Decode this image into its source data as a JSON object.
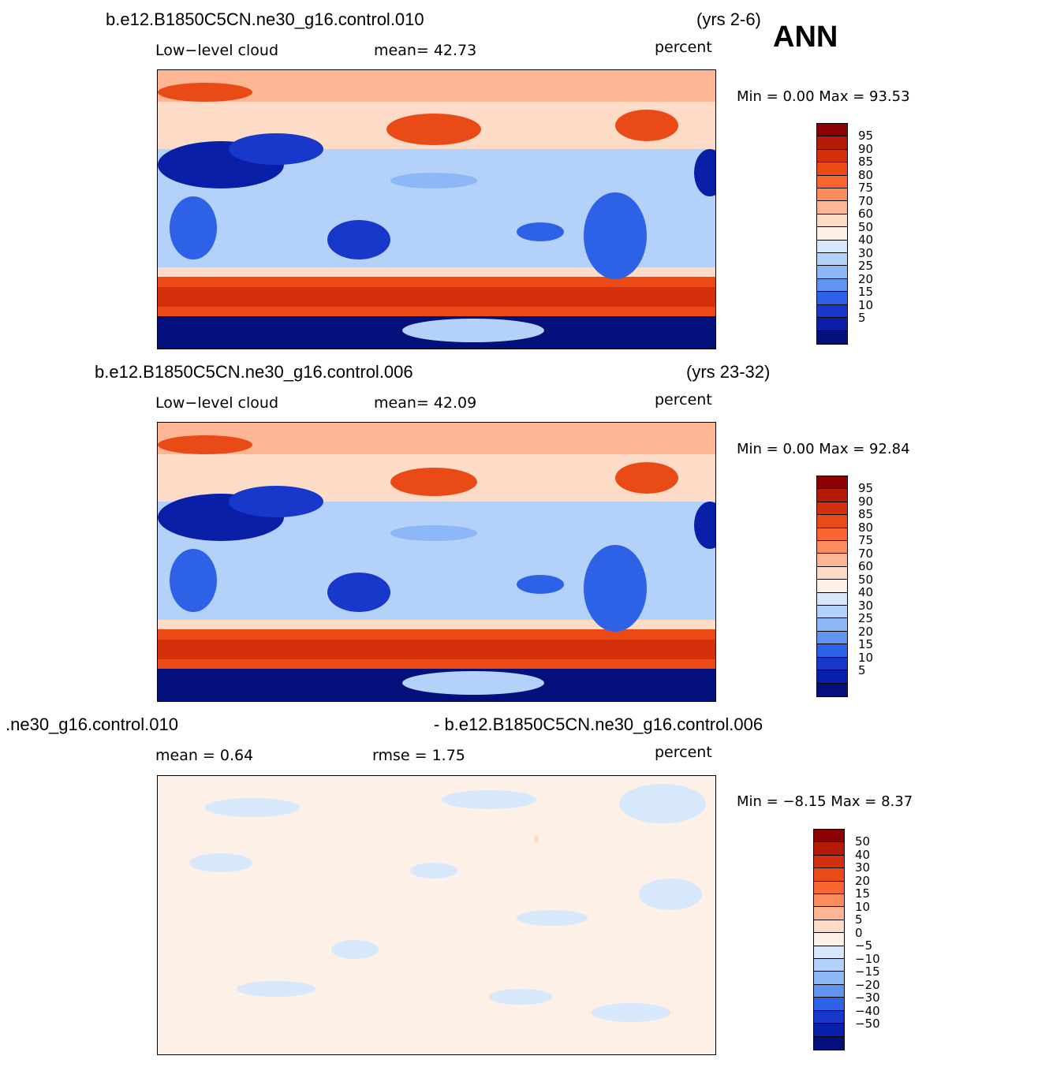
{
  "season": "ANN",
  "panels": [
    {
      "case_title": "b.e12.B1850C5CN.ne30_g16.control.010",
      "years": "(yrs 2-6)",
      "left_label": "Low−level  cloud",
      "mid_label": "mean=   42.73",
      "units": "percent",
      "minmax": "Min  =      0.00  Max  =     93.53",
      "map_kind": "field"
    },
    {
      "case_title": "b.e12.B1850C5CN.ne30_g16.control.006",
      "years": "(yrs 23-32)",
      "left_label": "Low−level  cloud",
      "mid_label": "mean=   42.09",
      "units": "percent",
      "minmax": "Min  =      0.00  Max  =     92.84",
      "map_kind": "field"
    },
    {
      "case_title": ".ne30_g16.control.010",
      "years": "- b.e12.B1850C5CN.ne30_g16.control.006",
      "left_label": "mean  =      0.64",
      "mid_label": "rmse  =      1.75",
      "units": "percent",
      "minmax": "Min  =  −8.15  Max  =       8.37",
      "map_kind": "diff"
    }
  ],
  "colorbars": {
    "field": {
      "labels": [
        "95",
        "90",
        "85",
        "80",
        "75",
        "70",
        "60",
        "50",
        "40",
        "30",
        "25",
        "20",
        "15",
        "10",
        "5"
      ],
      "colors": [
        "#8b0000",
        "#b31b05",
        "#d5300c",
        "#ea4a16",
        "#fa6630",
        "#fc8c5e",
        "#fdb594",
        "#fddcc7",
        "#fdf0e6",
        "#d7e8fc",
        "#b4d1fa",
        "#8db7f6",
        "#6094f0",
        "#2e62e6",
        "#1838cc",
        "#0a1fa8",
        "#03107c"
      ],
      "label_offset_slots": 1
    },
    "diff": {
      "labels": [
        "50",
        "40",
        "30",
        "20",
        "15",
        "10",
        "5",
        "0",
        "−5",
        "−10",
        "−15",
        "−20",
        "−30",
        "−40",
        "−50"
      ],
      "colors": [
        "#8b0000",
        "#b31b05",
        "#d5300c",
        "#ea4a16",
        "#fa6630",
        "#fc8c5e",
        "#fdb594",
        "#fddcc7",
        "#fdf0e6",
        "#d7e8fc",
        "#b4d1fa",
        "#8db7f6",
        "#6094f0",
        "#2e62e6",
        "#1838cc",
        "#0a1fa8",
        "#03107c"
      ],
      "label_offset_slots": 1
    }
  }
}
